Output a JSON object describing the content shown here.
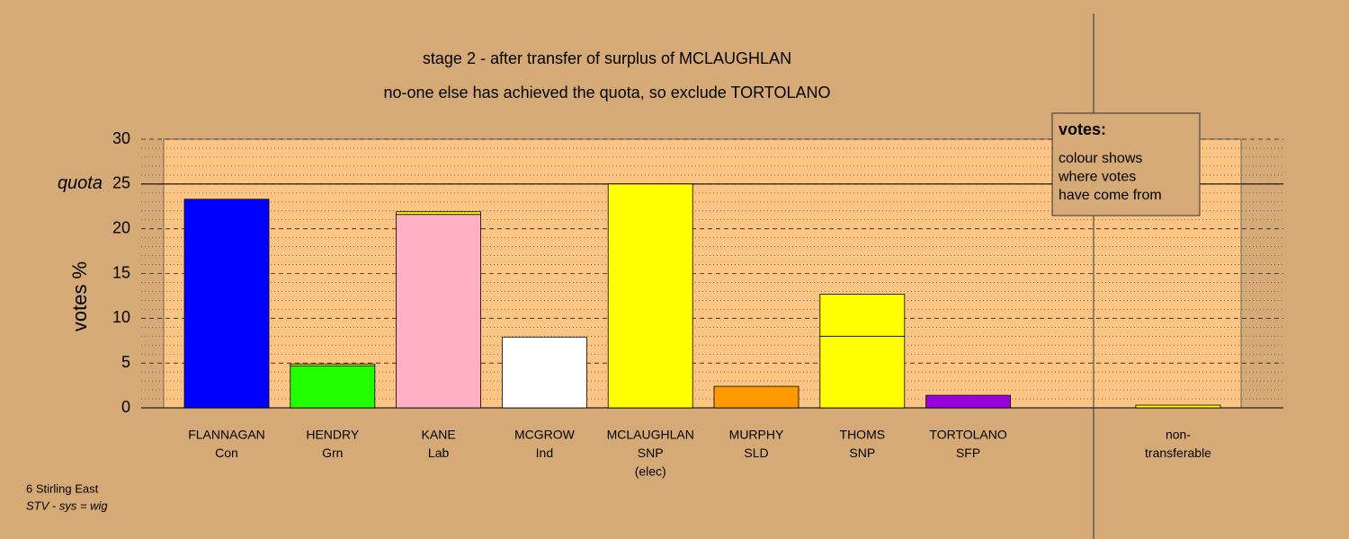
{
  "chart_data": {
    "type": "bar",
    "stacked": true,
    "title": "stage 2 - after transfer of surplus of MCLAUGHLAN",
    "subtitle": "no-one else has achieved the quota, so exclude TORTOLANO",
    "y_label": "votes %",
    "categories": [
      [
        "FLANNAGAN",
        "Con"
      ],
      [
        "HENDRY",
        "Grn"
      ],
      [
        "KANE",
        "Lab"
      ],
      [
        "MCGROW",
        "Ind"
      ],
      [
        "MCLAUGHLAN",
        "SNP",
        "(elec)"
      ],
      [
        "MURPHY",
        "SLD"
      ],
      [
        "THOMS",
        "SNP"
      ],
      [
        "TORTOLANO",
        "SFP"
      ],
      [
        "non-",
        "transferable"
      ]
    ],
    "series": [
      {
        "colors": [
          "#0000ff",
          "#22ff00",
          "#ffb0c4",
          "#ffffff",
          "#ffff00",
          "#ff9900",
          "#ffff00",
          "#9900dd",
          "#ffff00"
        ],
        "values": [
          23.3,
          4.7,
          21.6,
          7.9,
          25.0,
          2.4,
          8.0,
          1.4,
          0
        ]
      },
      {
        "colors": [
          "#ffff00",
          "#ffff00",
          "#ffff00",
          "#ffff00",
          "#ffff00",
          "#ffff00",
          "#ffff00",
          "#ffff00",
          "#ffff00"
        ],
        "values": [
          0,
          0.2,
          0.3,
          0,
          0,
          0,
          4.7,
          0,
          0.3
        ]
      }
    ],
    "ylim": [
      0,
      30
    ],
    "yticks": [
      0,
      5,
      10,
      15,
      20,
      25,
      30
    ],
    "minor_yticks": [
      1,
      2,
      3,
      4,
      6,
      7,
      8,
      9,
      11,
      12,
      13,
      14,
      16,
      17,
      18,
      19,
      21,
      22,
      23,
      24,
      26,
      27,
      28,
      29
    ],
    "quota": {
      "value": 25,
      "label": "quota"
    },
    "grid": true,
    "legend": {
      "title": "votes:",
      "lines": [
        "colour shows",
        "where votes",
        "have come from"
      ]
    },
    "footer": [
      "6 Stirling East",
      "STV - sys = wig"
    ]
  }
}
